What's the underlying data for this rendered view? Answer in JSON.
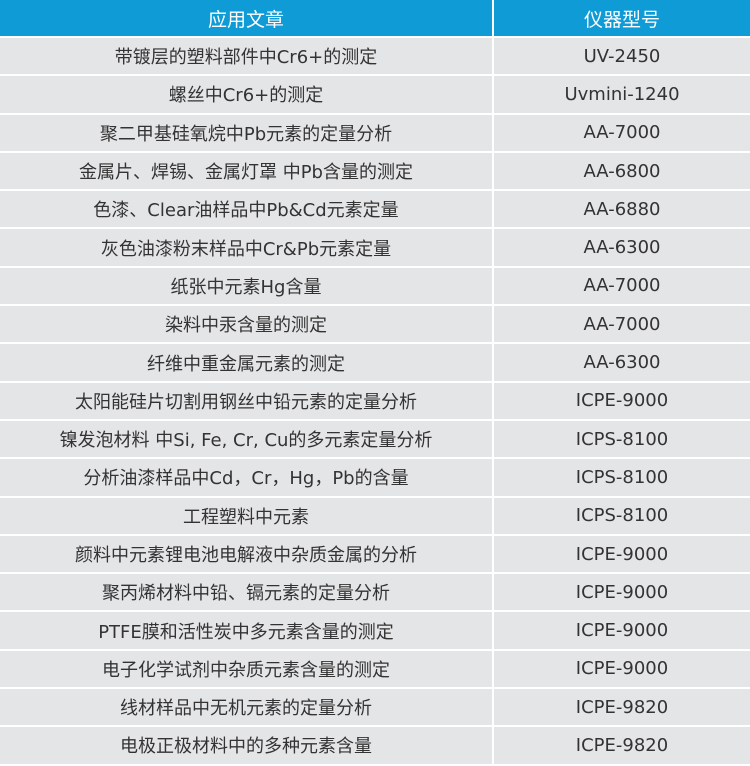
{
  "header": {
    "article": "应用文章",
    "model": "仪器型号"
  },
  "colors": {
    "header_bg": "#0e9bd6",
    "row_bg": "#e4e5e7"
  },
  "rows": [
    {
      "article": "带镀层的塑料部件中Cr6+的测定",
      "model": "UV-2450"
    },
    {
      "article": "螺丝中Cr6+的测定",
      "model": "Uvmini-1240"
    },
    {
      "article": "聚二甲基硅氧烷中Pb元素的定量分析",
      "model": "AA-7000"
    },
    {
      "article": "金属片、焊锡、金属灯罩 中Pb含量的测定",
      "model": "AA-6800"
    },
    {
      "article": "色漆、Clear油样品中Pb&Cd元素定量",
      "model": "AA-6880"
    },
    {
      "article": "灰色油漆粉末样品中Cr&Pb元素定量",
      "model": "AA-6300"
    },
    {
      "article": "纸张中元素Hg含量",
      "model": "AA-7000"
    },
    {
      "article": "染料中汞含量的测定",
      "model": "AA-7000"
    },
    {
      "article": "纤维中重金属元素的测定",
      "model": "AA-6300"
    },
    {
      "article": "太阳能硅片切割用钢丝中铅元素的定量分析",
      "model": "ICPE-9000"
    },
    {
      "article": "镍发泡材料 中Si, Fe, Cr, Cu的多元素定量分析",
      "model": "ICPS-8100"
    },
    {
      "article": "分析油漆样品中Cd，Cr，Hg，Pb的含量",
      "model": "ICPS-8100"
    },
    {
      "article": "工程塑料中元素",
      "model": "ICPS-8100"
    },
    {
      "article": "颜料中元素锂电池电解液中杂质金属的分析",
      "model": "ICPE-9000"
    },
    {
      "article": "聚丙烯材料中铅、镉元素的定量分析",
      "model": "ICPE-9000"
    },
    {
      "article": "PTFE膜和活性炭中多元素含量的测定",
      "model": "ICPE-9000"
    },
    {
      "article": "电子化学试剂中杂质元素含量的测定",
      "model": "ICPE-9000"
    },
    {
      "article": "线材样品中无机元素的定量分析",
      "model": "ICPE-9820"
    },
    {
      "article": "电极正极材料中的多种元素含量",
      "model": "ICPE-9820"
    }
  ]
}
